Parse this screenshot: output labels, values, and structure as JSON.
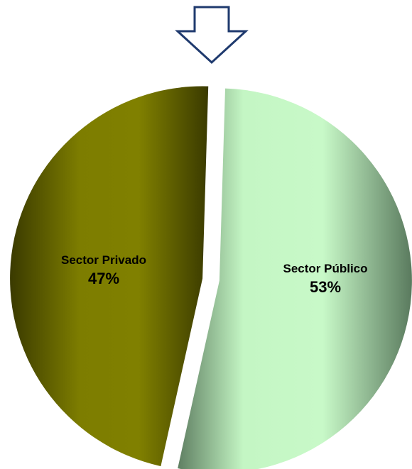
{
  "chart_data": {
    "type": "pie",
    "title": "",
    "slices": [
      {
        "label": "Sector Público",
        "value": 53,
        "display": "53%",
        "color": "#c6f7c6",
        "exploded": true
      },
      {
        "label": "Sector Privado",
        "value": 47,
        "display": "47%",
        "color": "#7f7f00",
        "exploded": true
      }
    ],
    "legend": "none",
    "start": "12 o'clock, clockwise",
    "decoration": {
      "icon": "down-arrow-icon",
      "color": "#1f3a6e"
    }
  }
}
